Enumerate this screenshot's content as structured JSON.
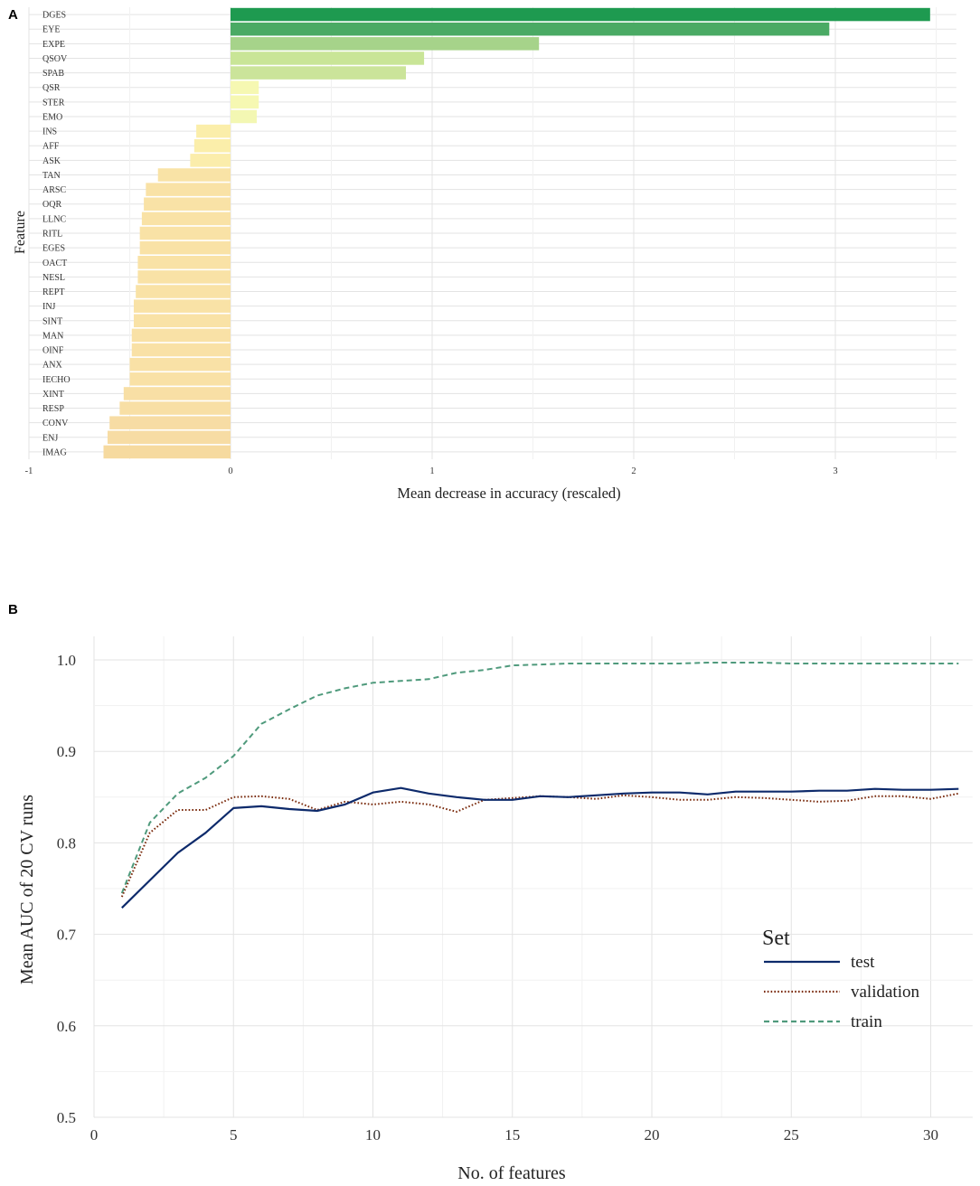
{
  "panels": {
    "a": "A",
    "b": "B"
  },
  "chart_data": [
    {
      "type": "bar",
      "orientation": "horizontal",
      "xlabel": "Mean decrease in accuracy (rescaled)",
      "ylabel": "Feature",
      "xlim": [
        -1,
        3.6
      ],
      "xticks": [
        -1,
        0,
        1,
        2,
        3
      ],
      "xtick_labels": [
        "-1",
        "0",
        "1",
        "2",
        "3"
      ],
      "categories": [
        "DGES",
        "EYE",
        "EXPE",
        "QSOV",
        "SPAB",
        "QSR",
        "STER",
        "EMO",
        "INS",
        "AFF",
        "ASK",
        "TAN",
        "ARSC",
        "OQR",
        "LLNC",
        "RITL",
        "EGES",
        "OACT",
        "NESL",
        "REPT",
        "INJ",
        "SINT",
        "MAN",
        "OINF",
        "ANX",
        "IECHO",
        "XINT",
        "RESP",
        "CONV",
        "ENJ",
        "IMAG"
      ],
      "values": [
        3.47,
        2.97,
        1.53,
        0.96,
        0.87,
        0.14,
        0.14,
        0.13,
        -0.17,
        -0.18,
        -0.2,
        -0.36,
        -0.42,
        -0.43,
        -0.44,
        -0.45,
        -0.45,
        -0.46,
        -0.46,
        -0.47,
        -0.48,
        -0.48,
        -0.49,
        -0.49,
        -0.5,
        -0.5,
        -0.53,
        -0.55,
        -0.6,
        -0.61,
        -0.63
      ],
      "colors": [
        "#1e9a50",
        "#4aaa64",
        "#a6d38a",
        "#c9e597",
        "#cbe49a",
        "#f6f8b2",
        "#f6f8b2",
        "#f3f7b3",
        "#fbeeaa",
        "#fbeeaa",
        "#fbedab",
        "#f9e3a6",
        "#f9e2a6",
        "#f9e2a6",
        "#f9e2a6",
        "#f9e2a6",
        "#f9e2a6",
        "#f9e2a6",
        "#f9e2a6",
        "#f9e2a6",
        "#f9e2a6",
        "#f9e2a6",
        "#f9e1a6",
        "#f9e1a6",
        "#f9e1a6",
        "#f9e1a6",
        "#f8dfa5",
        "#f8dfa5",
        "#f7dca4",
        "#f7dca4",
        "#f6da9f"
      ]
    },
    {
      "type": "line",
      "xlabel": "No. of features",
      "ylabel": "Mean  AUC of 20 CV runs",
      "xlim": [
        0,
        31.5
      ],
      "ylim": [
        0.5,
        1.0
      ],
      "xticks": [
        0,
        5,
        10,
        15,
        20,
        25,
        30
      ],
      "xtick_labels": [
        "0",
        "5",
        "10",
        "15",
        "20",
        "25",
        "30"
      ],
      "yticks": [
        0.5,
        0.6,
        0.7,
        0.8,
        0.9,
        1.0
      ],
      "ytick_labels": [
        "0.5",
        "0.6",
        "0.7",
        "0.8",
        "0.9",
        "1.0"
      ],
      "legend_title": "Set",
      "legend_position": "bottom-right",
      "x": [
        1,
        2,
        3,
        4,
        5,
        6,
        7,
        8,
        9,
        10,
        11,
        12,
        13,
        14,
        15,
        16,
        17,
        18,
        19,
        20,
        21,
        22,
        23,
        24,
        25,
        26,
        27,
        28,
        29,
        30,
        31
      ],
      "series": [
        {
          "name": "test",
          "color": "#0d2a6b",
          "dash": "solid",
          "values": [
            0.729,
            0.759,
            0.789,
            0.811,
            0.838,
            0.84,
            0.837,
            0.835,
            0.842,
            0.855,
            0.86,
            0.854,
            0.85,
            0.847,
            0.847,
            0.851,
            0.85,
            0.852,
            0.854,
            0.855,
            0.855,
            0.853,
            0.856,
            0.856,
            0.856,
            0.857,
            0.857,
            0.859,
            0.858,
            0.858,
            0.859
          ]
        },
        {
          "name": "validation",
          "color": "#7a2a0c",
          "dash": "dotted",
          "values": [
            0.741,
            0.811,
            0.836,
            0.836,
            0.85,
            0.851,
            0.848,
            0.836,
            0.845,
            0.842,
            0.845,
            0.842,
            0.834,
            0.847,
            0.849,
            0.851,
            0.85,
            0.848,
            0.852,
            0.85,
            0.847,
            0.847,
            0.85,
            0.849,
            0.847,
            0.845,
            0.846,
            0.851,
            0.851,
            0.848,
            0.854
          ]
        },
        {
          "name": "train",
          "color": "#4f9a7c",
          "dash": "dashed",
          "values": [
            0.745,
            0.822,
            0.854,
            0.871,
            0.895,
            0.93,
            0.946,
            0.961,
            0.969,
            0.975,
            0.977,
            0.979,
            0.986,
            0.989,
            0.994,
            0.995,
            0.996,
            0.996,
            0.996,
            0.996,
            0.996,
            0.997,
            0.997,
            0.997,
            0.996,
            0.996,
            0.996,
            0.996,
            0.996,
            0.996,
            0.996
          ]
        }
      ]
    }
  ]
}
